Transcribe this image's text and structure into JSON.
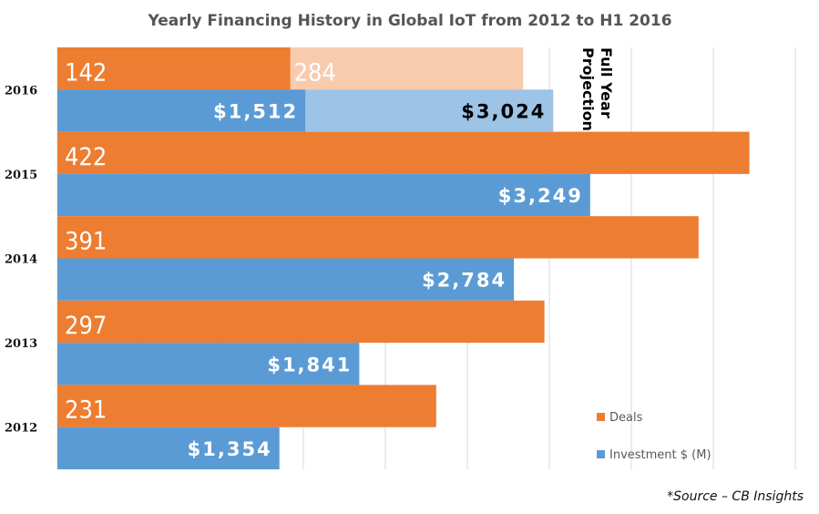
{
  "chart_data": {
    "type": "bar",
    "orientation": "horizontal",
    "title": "Yearly Financing History in Global IoT from 2012 to H1 2016",
    "categories": [
      "2016",
      "2015",
      "2014",
      "2013",
      "2012"
    ],
    "series": [
      {
        "name": "Deals",
        "color": "#ED7D31",
        "values": [
          142,
          422,
          391,
          297,
          231
        ],
        "labels": [
          "142",
          "422",
          "391",
          "297",
          "231"
        ]
      },
      {
        "name": "Investment $ (M)",
        "color": "#5B9BD5",
        "values": [
          1512,
          3249,
          2784,
          1841,
          1354
        ],
        "labels": [
          "$1,512",
          "$3,249",
          "$2,784",
          "$1,841",
          "$1,354"
        ]
      }
    ],
    "projection": {
      "label": "Full Year Projection",
      "category": "2016",
      "deals": {
        "value": 284,
        "label": "284",
        "color": "#F8CBAD"
      },
      "investment": {
        "value": 3024,
        "label": "$3,024",
        "color": "#9DC3E6"
      }
    },
    "deals_axis_max": 450,
    "investment_axis_max": 4500,
    "grid": true,
    "legend": "bottom-right",
    "source_note": "*Source – CB Insights"
  }
}
